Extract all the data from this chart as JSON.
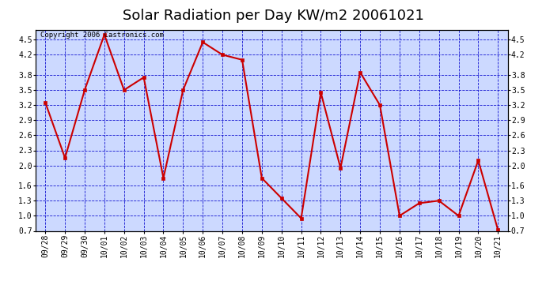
{
  "title": "Solar Radiation per Day KW/m2 20061021",
  "copyright_text": "Copyright 2006 Castronics.com",
  "x_labels": [
    "09/28",
    "09/29",
    "09/30",
    "10/01",
    "10/02",
    "10/03",
    "10/04",
    "10/05",
    "10/06",
    "10/07",
    "10/08",
    "10/09",
    "10/10",
    "10/11",
    "10/12",
    "10/13",
    "10/14",
    "10/15",
    "10/16",
    "10/17",
    "10/18",
    "10/19",
    "10/20",
    "10/21"
  ],
  "y_values": [
    3.25,
    2.15,
    3.5,
    4.6,
    3.5,
    3.75,
    1.75,
    3.5,
    4.45,
    4.2,
    4.1,
    1.75,
    1.35,
    0.95,
    3.45,
    1.95,
    3.85,
    3.2,
    1.0,
    1.25,
    1.3,
    1.0,
    2.1,
    0.72
  ],
  "line_color": "#cc0000",
  "marker_color": "#cc0000",
  "bg_color": "#ccd9ff",
  "grid_color": "#0000cc",
  "border_color": "#000000",
  "y_min": 0.7,
  "y_max": 4.7,
  "y_ticks": [
    0.7,
    1.0,
    1.3,
    1.6,
    2.0,
    2.3,
    2.6,
    2.9,
    3.2,
    3.5,
    3.8,
    4.2,
    4.5
  ],
  "title_fontsize": 13,
  "copyright_fontsize": 6.5,
  "tick_fontsize": 7,
  "marker_size": 3.0,
  "line_width": 1.5
}
